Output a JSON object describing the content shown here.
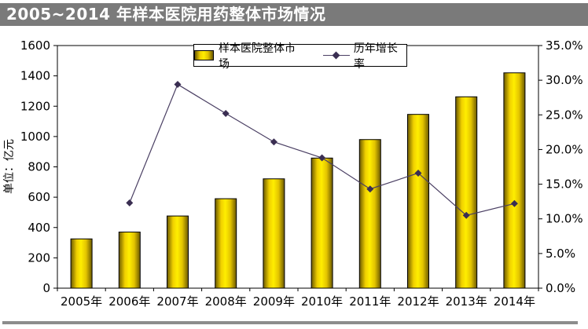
{
  "title": "2005~2014 年样本医院用药整体市场情况",
  "colors": {
    "banner_bg": "#7a7a7a",
    "banner_text": "#ffffff",
    "bar_yellow": "#ffee00",
    "bar_dark_gold": "#6b5900",
    "bar_border": "#000000",
    "line_color": "#4a3f63",
    "marker_color": "#3a2e52",
    "axis_color": "#000000",
    "footer_rule": "#8c8c8c"
  },
  "chart_data": {
    "type": "combo-bar-line",
    "title": "2005~2014 年样本医院用药整体市场情况",
    "categories": [
      "2005年",
      "2006年",
      "2007年",
      "2008年",
      "2009年",
      "2010年",
      "2011年",
      "2012年",
      "2013年",
      "2014年"
    ],
    "series": [
      {
        "name": "样本医院整体市场",
        "type": "bar",
        "axis": "left",
        "values": [
          325,
          370,
          476,
          590,
          721,
          858,
          980,
          1146,
          1262,
          1420
        ]
      },
      {
        "name": "历年增长率",
        "type": "line",
        "axis": "right",
        "values": [
          null,
          12.3,
          29.4,
          25.2,
          21.1,
          18.8,
          14.3,
          16.6,
          10.5,
          12.2
        ]
      }
    ],
    "left_axis": {
      "label": "单位：亿元",
      "min": 0,
      "max": 1600,
      "step": 200,
      "tick_labels": [
        "0",
        "200",
        "400",
        "600",
        "800",
        "1000",
        "1200",
        "1400",
        "1600"
      ]
    },
    "right_axis": {
      "min": 0,
      "max": 35,
      "step": 5,
      "tick_labels": [
        "0.0%",
        "5.0%",
        "10.0%",
        "15.0%",
        "20.0%",
        "25.0%",
        "30.0%",
        "35.0%"
      ]
    },
    "legend": {
      "position": "top-center",
      "items": [
        "样本医院整体市场",
        "历年增长率"
      ]
    },
    "grid": false
  }
}
